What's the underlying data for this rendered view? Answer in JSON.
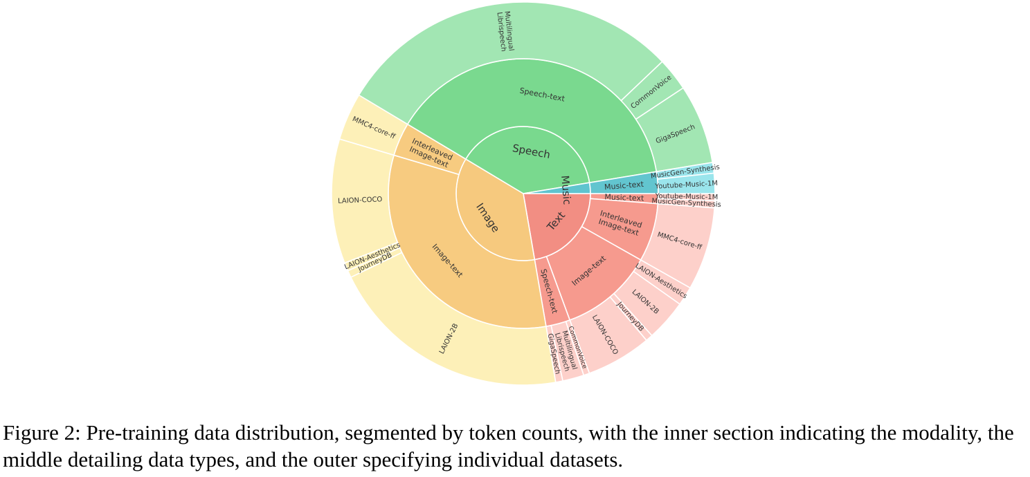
{
  "chart_data": {
    "type": "sunburst",
    "levels": [
      "modality",
      "data type",
      "dataset"
    ],
    "note_values": "approximate share of total token count (percent), estimated from arc angles",
    "rings": [
      {
        "name": "Text",
        "color": "#f28e83",
        "value": 22.3,
        "children": [
          {
            "name": "Music-text",
            "color": "#f69a8e",
            "value": 1.2,
            "children": [
              {
                "name": "Youtube-Music-1M",
                "color": "#fdd0ca",
                "value": 0.6
              },
              {
                "name": "MusicGen-Synthesis",
                "color": "#fdd0ca",
                "value": 0.6
              }
            ]
          },
          {
            "name": "Interleaved\nImage-text",
            "color": "#f69a8e",
            "value": 7.0,
            "children": [
              {
                "name": "MMC4-core-ff",
                "color": "#fdd0ca",
                "value": 7.0
              }
            ]
          },
          {
            "name": "Image-text",
            "color": "#f69a8e",
            "value": 11.2,
            "children": [
              {
                "name": "LAION-Aesthetics",
                "color": "#fdd0ca",
                "value": 1.6
              },
              {
                "name": "LAION-2B",
                "color": "#fdd0ca",
                "value": 3.5
              },
              {
                "name": "JourneyDB",
                "color": "#fdd0ca",
                "value": 0.6
              },
              {
                "name": "LAION-COCO",
                "color": "#fdd0ca",
                "value": 5.5
              }
            ]
          },
          {
            "name": "Speech-text",
            "color": "#f69a8e",
            "value": 2.9,
            "children": [
              {
                "name": "CommonVoice",
                "color": "#fdd0ca",
                "value": 0.5
              },
              {
                "name": "Multilingual\nLibrispeech",
                "color": "#fdd0ca",
                "value": 1.8
              },
              {
                "name": "GigaSpeech",
                "color": "#fdd0ca",
                "value": 0.6
              }
            ]
          }
        ]
      },
      {
        "name": "Image",
        "color": "#f6c97e",
        "value": 36.3,
        "children": [
          {
            "name": "Image-text",
            "color": "#f7cb80",
            "value": 32.3,
            "children": [
              {
                "name": "LAION-2B",
                "color": "#fdf0b8",
                "value": 20.5
              },
              {
                "name": "JourneyDB",
                "color": "#fdf0b8",
                "value": 0.6
              },
              {
                "name": "LAION-Aesthetics",
                "color": "#fdf0b8",
                "value": 0.7
              },
              {
                "name": "LAION-COCO",
                "color": "#fdf0b8",
                "value": 10.5
              }
            ]
          },
          {
            "name": "Interleaved\nImage-text",
            "color": "#f7cb80",
            "value": 4.0,
            "children": [
              {
                "name": "MMC4-core-ff",
                "color": "#fdf0b8",
                "value": 4.0
              }
            ]
          }
        ]
      },
      {
        "name": "Speech",
        "color": "#79d98e",
        "value": 38.8,
        "children": [
          {
            "name": "Speech-text",
            "color": "#7ad98f",
            "value": 38.8,
            "children": [
              {
                "name": "Multilingual\nLibrispeech",
                "color": "#a2e6b3",
                "value": 29.3
              },
              {
                "name": "CommonVoice",
                "color": "#a2e6b3",
                "value": 2.8
              },
              {
                "name": "GigaSpeech",
                "color": "#a2e6b3",
                "value": 6.7
              }
            ]
          }
        ]
      },
      {
        "name": "Music",
        "color": "#5fc4cf",
        "value": 2.6,
        "children": [
          {
            "name": "Music-text",
            "color": "#62c5cf",
            "value": 2.6,
            "children": [
              {
                "name": "MusicGen-Synthesis",
                "color": "#9ae5ec",
                "value": 0.9
              },
              {
                "name": "Youtube-Music-1M",
                "color": "#9ae5ec",
                "value": 1.7
              }
            ]
          }
        ]
      }
    ]
  },
  "caption": "Figure 2: Pre-training data distribution, segmented by token counts, with the inner section indicating the modality, the middle detailing data types, and the outer specifying individual datasets."
}
